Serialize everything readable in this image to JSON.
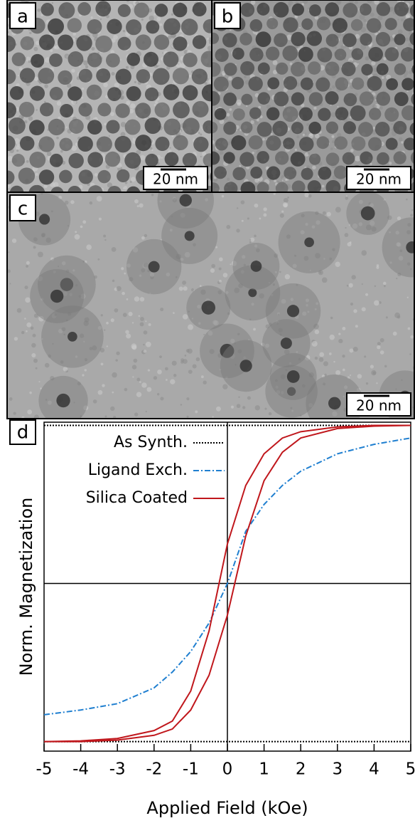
{
  "panels": [
    {
      "label": "a",
      "scale": "20 nm"
    },
    {
      "label": "b",
      "scale": "20 nm"
    },
    {
      "label": "c",
      "scale": "20 nm"
    }
  ],
  "chart_data": {
    "type": "line",
    "panel_label": "d",
    "x_label": "Applied Field (kOe)",
    "y_label": "Norm. Magnetization",
    "x": [
      -5,
      -4,
      -3,
      -2,
      -1.5,
      -1,
      -0.5,
      0,
      0.5,
      1,
      1.5,
      2,
      3,
      4,
      5
    ],
    "xlim": [
      -5,
      5
    ],
    "ylim": [
      -1.06,
      1.02
    ],
    "xticks": [
      -5,
      -4,
      -3,
      -2,
      -1,
      0,
      1,
      2,
      3,
      4,
      5
    ],
    "series": [
      {
        "name": "As Synth.",
        "color": "#000000",
        "style": "dotted",
        "branches": [
          [
            1,
            1,
            1,
            1,
            1,
            1,
            1,
            1,
            1,
            1,
            1,
            1,
            1,
            1,
            1
          ],
          [
            -1,
            -1,
            -1,
            -1,
            -1,
            -1,
            -1,
            -1,
            -1,
            -1,
            -1,
            -1,
            -1,
            -1,
            -1
          ]
        ]
      },
      {
        "name": "Ligand Exch.",
        "color": "#1f7fd0",
        "style": "dashdot",
        "branches": [
          [
            -0.83,
            -0.8,
            -0.76,
            -0.66,
            -0.56,
            -0.43,
            -0.25,
            0,
            0.33,
            0.5,
            0.62,
            0.71,
            0.82,
            0.88,
            0.92
          ]
        ]
      },
      {
        "name": "Silica Coated",
        "color": "#c0171c",
        "style": "solid",
        "branches": [
          [
            -1,
            -0.995,
            -0.98,
            -0.93,
            -0.87,
            -0.68,
            -0.3,
            0.25,
            0.62,
            0.82,
            0.92,
            0.96,
            0.99,
            1,
            1
          ],
          [
            -1,
            -1,
            -0.99,
            -0.96,
            -0.92,
            -0.8,
            -0.58,
            -0.2,
            0.3,
            0.65,
            0.83,
            0.92,
            0.98,
            0.995,
            1
          ]
        ]
      }
    ]
  }
}
